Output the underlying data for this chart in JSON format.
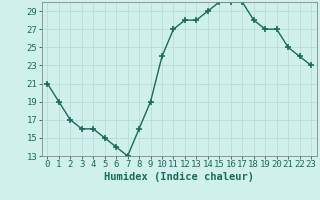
{
  "x": [
    0,
    1,
    2,
    3,
    4,
    5,
    6,
    7,
    8,
    9,
    10,
    11,
    12,
    13,
    14,
    15,
    16,
    17,
    18,
    19,
    20,
    21,
    22,
    23
  ],
  "y": [
    21,
    19,
    17,
    16,
    16,
    15,
    14,
    13,
    16,
    19,
    24,
    27,
    28,
    28,
    29,
    30,
    30,
    30,
    28,
    27,
    27,
    25,
    24,
    23
  ],
  "line_color": "#1a6b5a",
  "marker": "+",
  "marker_size": 4,
  "marker_linewidth": 1.2,
  "background_color": "#cff0eb",
  "grid_color": "#b8ddd8",
  "xlabel": "Humidex (Indice chaleur)",
  "xlim": [
    -0.5,
    23.5
  ],
  "ylim": [
    13,
    30
  ],
  "yticks": [
    13,
    15,
    17,
    19,
    21,
    23,
    25,
    27,
    29
  ],
  "xticks": [
    0,
    1,
    2,
    3,
    4,
    5,
    6,
    7,
    8,
    9,
    10,
    11,
    12,
    13,
    14,
    15,
    16,
    17,
    18,
    19,
    20,
    21,
    22,
    23
  ],
  "xlabel_fontsize": 7.5,
  "tick_fontsize": 6.5,
  "tick_color": "#1a6b5a",
  "axis_color": "#888888",
  "linewidth": 1.0
}
